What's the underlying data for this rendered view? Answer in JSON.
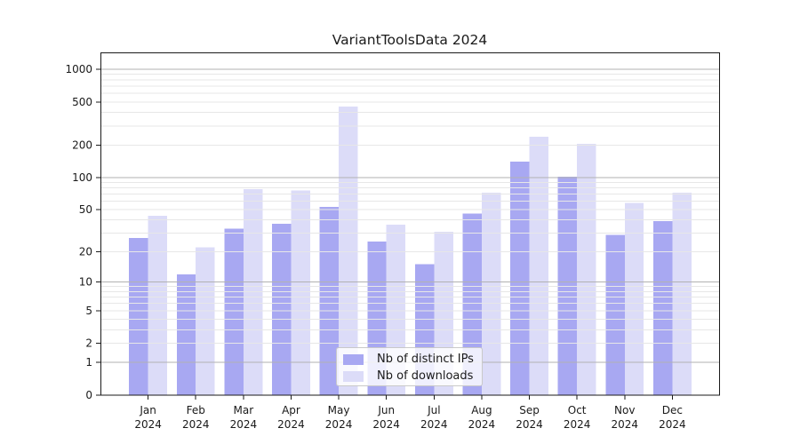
{
  "chart_data": {
    "type": "bar",
    "title": "VariantToolsData 2024",
    "categories": [
      "Jan 2024",
      "Feb 2024",
      "Mar 2024",
      "Apr 2024",
      "May 2024",
      "Jun 2024",
      "Jul 2024",
      "Aug 2024",
      "Sep 2024",
      "Oct 2024",
      "Nov 2024",
      "Dec 2024"
    ],
    "month_labels": [
      "Jan",
      "Feb",
      "Mar",
      "Apr",
      "May",
      "Jun",
      "Jul",
      "Aug",
      "Sep",
      "Oct",
      "Nov",
      "Dec"
    ],
    "year_label": "2024",
    "series": [
      {
        "name": "Nb of distinct IPs",
        "color": "#a8a8f2",
        "values": [
          27,
          12,
          33,
          37,
          53,
          25,
          15,
          46,
          140,
          102,
          29,
          39
        ]
      },
      {
        "name": "Nb of downloads",
        "color": "#dcdcf8",
        "values": [
          44,
          22,
          78,
          76,
          453,
          36,
          31,
          72,
          238,
          205,
          58,
          72
        ]
      }
    ],
    "y_axis": {
      "scale": "log10(1+y)",
      "tick_values": [
        0,
        1,
        2,
        5,
        10,
        20,
        50,
        100,
        200,
        500,
        1000
      ],
      "major_grid_values": [
        1,
        10,
        100,
        1000
      ],
      "minor_grid_rule": "digits 2-9 of each decade",
      "top_value": 1000
    },
    "legend_position": "lower center",
    "grid": true
  },
  "style": {
    "grid_major_color": "#b2b2b2",
    "grid_minor_color": "#e7e7e7",
    "spine_color": "#1a1a1a",
    "text_color": "#1a1a1a",
    "background": "#ffffff"
  }
}
